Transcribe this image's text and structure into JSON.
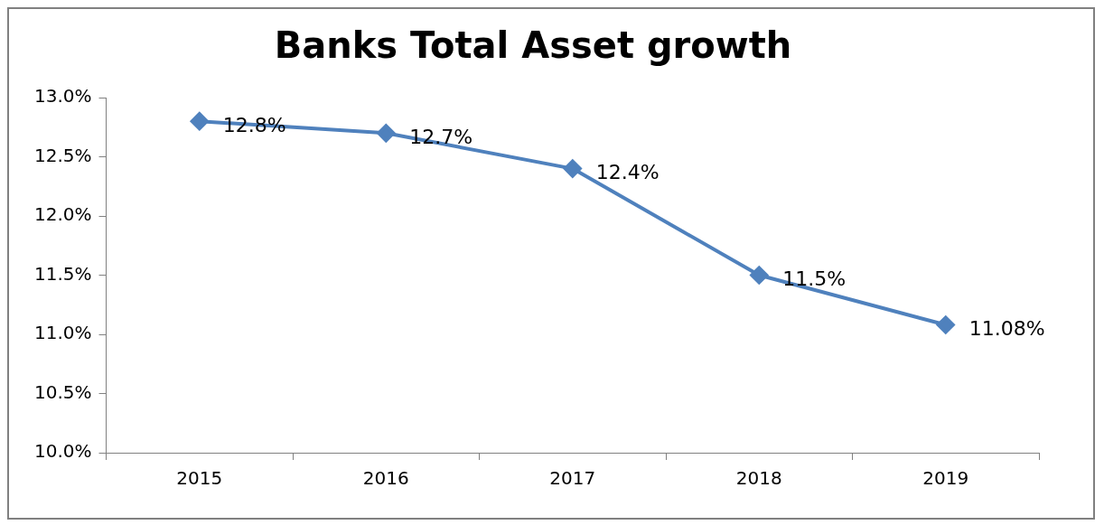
{
  "chart_data": {
    "type": "line",
    "title": "Banks Total Asset growth",
    "categories": [
      "2015",
      "2016",
      "2017",
      "2018",
      "2019"
    ],
    "series": [
      {
        "color": "#4f81bd",
        "values": [
          12.8,
          12.7,
          12.4,
          11.5,
          11.08
        ],
        "value_labels": [
          "12.8%",
          "12.7%",
          "12.4%",
          "11.5%",
          "11.08%"
        ]
      }
    ],
    "ylim": [
      10,
      13
    ],
    "yticks": [
      {
        "value": 10,
        "label": "10.0%"
      },
      {
        "value": 10.5,
        "label": "10.5%"
      },
      {
        "value": 11,
        "label": "11.0%"
      },
      {
        "value": 11.5,
        "label": "11.5%"
      },
      {
        "value": 12,
        "label": "12.0%"
      },
      {
        "value": 12.5,
        "label": "12.5%"
      },
      {
        "value": 13,
        "label": "13.0%"
      }
    ],
    "grid": false,
    "legend": false,
    "marker": "diamond",
    "line_style": "solid"
  }
}
